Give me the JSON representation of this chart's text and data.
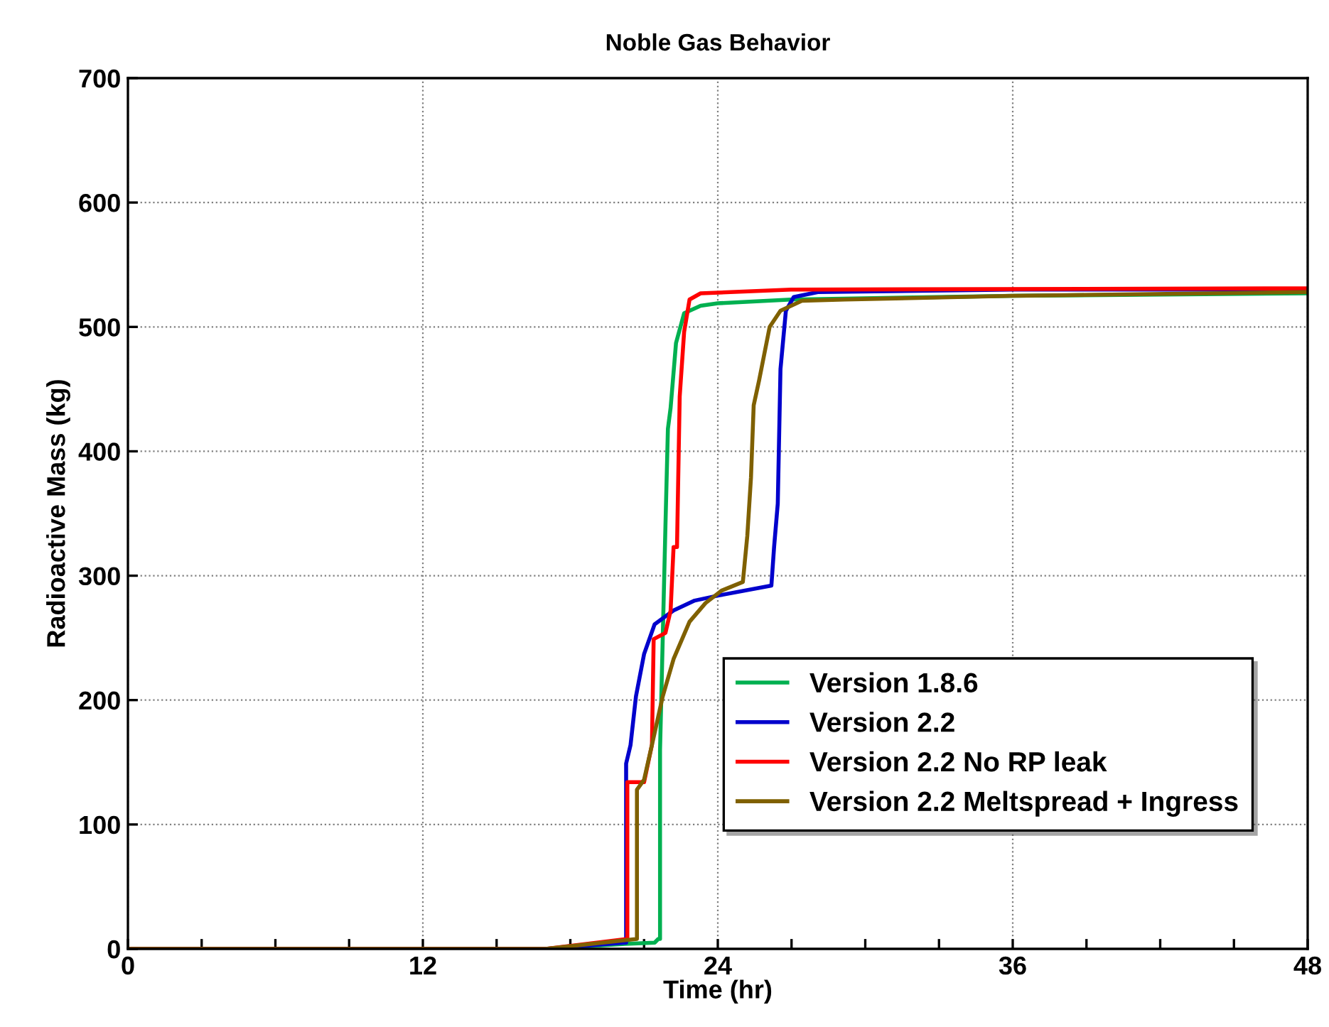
{
  "chart_data": {
    "type": "line",
    "title": "Noble Gas Behavior",
    "xlabel": "Time (hr)",
    "ylabel": "Radioactive Mass (kg)",
    "xlim": [
      0,
      48
    ],
    "ylim": [
      0,
      700
    ],
    "xticks": [
      0,
      {
        "value": 3,
        "label": null
      },
      {
        "value": 6,
        "label": null
      },
      {
        "value": 9,
        "label": null
      },
      12,
      {
        "value": 15,
        "label": null
      },
      {
        "value": 18,
        "label": null
      },
      {
        "value": 21,
        "label": null
      },
      24,
      {
        "value": 27,
        "label": null
      },
      {
        "value": 30,
        "label": null
      },
      {
        "value": 33,
        "label": null
      },
      36,
      {
        "value": 39,
        "label": null
      },
      {
        "value": 42,
        "label": null
      },
      {
        "value": 45,
        "label": null
      },
      48
    ],
    "yticks": [
      0,
      100,
      200,
      300,
      400,
      500,
      600,
      700
    ],
    "grid": true,
    "legend": "bottom right",
    "line_style": "solid",
    "marker": "none",
    "series": [
      {
        "name": "Version 1.8.6",
        "color": "#00b050",
        "x": [
          0,
          17,
          20.23,
          21.43,
          21.58,
          21.65,
          21.65,
          21.76,
          21.87,
          21.97,
          22.08,
          22.3,
          22.63,
          23.3,
          24,
          26.98,
          36,
          48
        ],
        "values": [
          0,
          0,
          4,
          5,
          8,
          8,
          160,
          250,
          340,
          418,
          435,
          487,
          511,
          517,
          519,
          522,
          525,
          527
        ]
      },
      {
        "name": "Version 2.2",
        "color": "#0000cc",
        "x": [
          0,
          17,
          20.2,
          20.27,
          20.27,
          20.45,
          20.67,
          21.0,
          21.43,
          22.2,
          23.06,
          24,
          26.18,
          26.29,
          26.44,
          26.55,
          26.77,
          27.09,
          28.07,
          36,
          48
        ],
        "values": [
          0,
          0,
          5,
          5,
          149,
          164,
          203,
          237,
          261,
          272,
          280,
          284,
          292,
          323,
          358,
          466,
          513,
          524,
          528,
          530,
          530
        ]
      },
      {
        "name": "Version 2.2 No RP leak",
        "color": "#ff0000",
        "x": [
          0,
          17,
          20.32,
          20.32,
          21.0,
          21.32,
          21.39,
          21.87,
          22.08,
          22.2,
          22.34,
          22.45,
          22.63,
          22.85,
          23.3,
          26.98,
          48
        ],
        "values": [
          0,
          0,
          8,
          134,
          134,
          164,
          249,
          254,
          272,
          323,
          323,
          444,
          496,
          522,
          527,
          530,
          531
        ]
      },
      {
        "name": "Version 2.2 Meltspread + Ingress",
        "color": "#7f6000",
        "x": [
          0,
          17,
          20.71,
          20.71,
          21.0,
          21.32,
          21.76,
          22.2,
          22.85,
          23.5,
          24.15,
          25.02,
          25.2,
          25.35,
          25.46,
          25.68,
          26.11,
          26.55,
          27.42,
          29.16,
          36,
          48
        ],
        "values": [
          0,
          0,
          8,
          128,
          136,
          164,
          203,
          233,
          263,
          278,
          288,
          295,
          332,
          379,
          437,
          457,
          500,
          513,
          521,
          522,
          525,
          528
        ]
      }
    ]
  }
}
